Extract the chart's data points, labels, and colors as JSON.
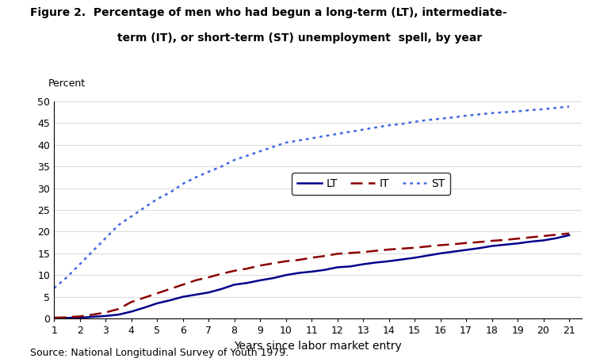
{
  "title_line1": "Figure 2.  Percentage of men who had begun a long-term (LT), intermediate-",
  "title_line2": "term (IT), or short-term (ST) unemployment  spell, by year",
  "ylabel": "Percent",
  "xlabel": "Years since labor market entry",
  "source": "Source: National Longitudinal Survey of Youth 1979.",
  "ylim": [
    0,
    50
  ],
  "xlim": [
    1,
    21.5
  ],
  "yticks": [
    0,
    5,
    10,
    15,
    20,
    25,
    30,
    35,
    40,
    45,
    50
  ],
  "xticks": [
    1,
    2,
    3,
    4,
    5,
    6,
    7,
    8,
    9,
    10,
    11,
    12,
    13,
    14,
    15,
    16,
    17,
    18,
    19,
    20,
    21
  ],
  "xtick_labels": [
    "1",
    "2",
    "3",
    "4",
    "5",
    "6",
    "7",
    "8",
    "9",
    "10",
    "11",
    "12",
    "13",
    "14",
    "15",
    "16",
    "17",
    "18",
    "19",
    "20",
    "21"
  ],
  "LT_x": [
    1,
    1.5,
    2,
    2.5,
    3,
    3.5,
    4,
    4.5,
    5,
    5.5,
    6,
    6.5,
    7,
    7.5,
    8,
    8.5,
    9,
    9.5,
    10,
    10.5,
    11,
    11.5,
    12,
    12.5,
    13,
    13.5,
    14,
    14.5,
    15,
    15.5,
    16,
    16.5,
    17,
    17.5,
    18,
    18.5,
    19,
    19.5,
    20,
    20.5,
    21
  ],
  "LT_y": [
    0.1,
    0.15,
    0.2,
    0.4,
    0.6,
    0.9,
    1.6,
    2.5,
    3.5,
    4.2,
    5.0,
    5.5,
    6.0,
    6.8,
    7.8,
    8.2,
    8.8,
    9.3,
    10.0,
    10.5,
    10.8,
    11.2,
    11.8,
    12.0,
    12.5,
    12.9,
    13.2,
    13.6,
    14.0,
    14.5,
    15.0,
    15.4,
    15.8,
    16.2,
    16.7,
    17.0,
    17.3,
    17.7,
    18.0,
    18.5,
    19.2
  ],
  "IT_x": [
    1,
    1.5,
    2,
    2.5,
    3,
    3.5,
    4,
    4.5,
    5,
    5.5,
    6,
    6.5,
    7,
    7.5,
    8,
    8.5,
    9,
    9.5,
    10,
    10.5,
    11,
    11.5,
    12,
    12.5,
    13,
    13.5,
    14,
    14.5,
    15,
    15.5,
    16,
    16.5,
    17,
    17.5,
    18,
    18.5,
    19,
    19.5,
    20,
    20.5,
    21
  ],
  "IT_y": [
    0.2,
    0.3,
    0.5,
    0.9,
    1.4,
    2.2,
    3.8,
    4.8,
    5.8,
    6.8,
    7.8,
    8.8,
    9.5,
    10.3,
    11.0,
    11.5,
    12.2,
    12.7,
    13.2,
    13.5,
    14.0,
    14.4,
    14.9,
    15.1,
    15.3,
    15.6,
    15.9,
    16.1,
    16.3,
    16.6,
    16.9,
    17.1,
    17.4,
    17.6,
    17.9,
    18.1,
    18.4,
    18.7,
    19.0,
    19.3,
    19.6
  ],
  "ST_x": [
    1,
    1.5,
    2,
    2.5,
    3,
    3.5,
    4,
    4.5,
    5,
    5.5,
    6,
    6.5,
    7,
    7.5,
    8,
    8.5,
    9,
    9.5,
    10,
    10.5,
    11,
    11.5,
    12,
    12.5,
    13,
    13.5,
    14,
    14.5,
    15,
    15.5,
    16,
    16.5,
    17,
    17.5,
    18,
    18.5,
    19,
    19.5,
    20,
    20.5,
    21
  ],
  "ST_y": [
    7.0,
    9.5,
    12.5,
    15.5,
    18.5,
    21.5,
    23.5,
    25.5,
    27.5,
    29.0,
    31.0,
    32.5,
    33.8,
    35.0,
    36.5,
    37.5,
    38.5,
    39.5,
    40.5,
    41.0,
    41.5,
    42.0,
    42.5,
    43.0,
    43.5,
    44.0,
    44.5,
    44.8,
    45.3,
    45.7,
    46.0,
    46.3,
    46.7,
    47.0,
    47.3,
    47.5,
    47.7,
    48.0,
    48.2,
    48.5,
    48.8
  ],
  "LT_color": "#00008B",
  "IT_color": "#8B0000",
  "ST_color": "#4169E1",
  "LT_linewidth": 1.8,
  "IT_linewidth": 1.8,
  "ST_linewidth": 1.8,
  "legend_labels": [
    "LT",
    "IT",
    "ST"
  ]
}
